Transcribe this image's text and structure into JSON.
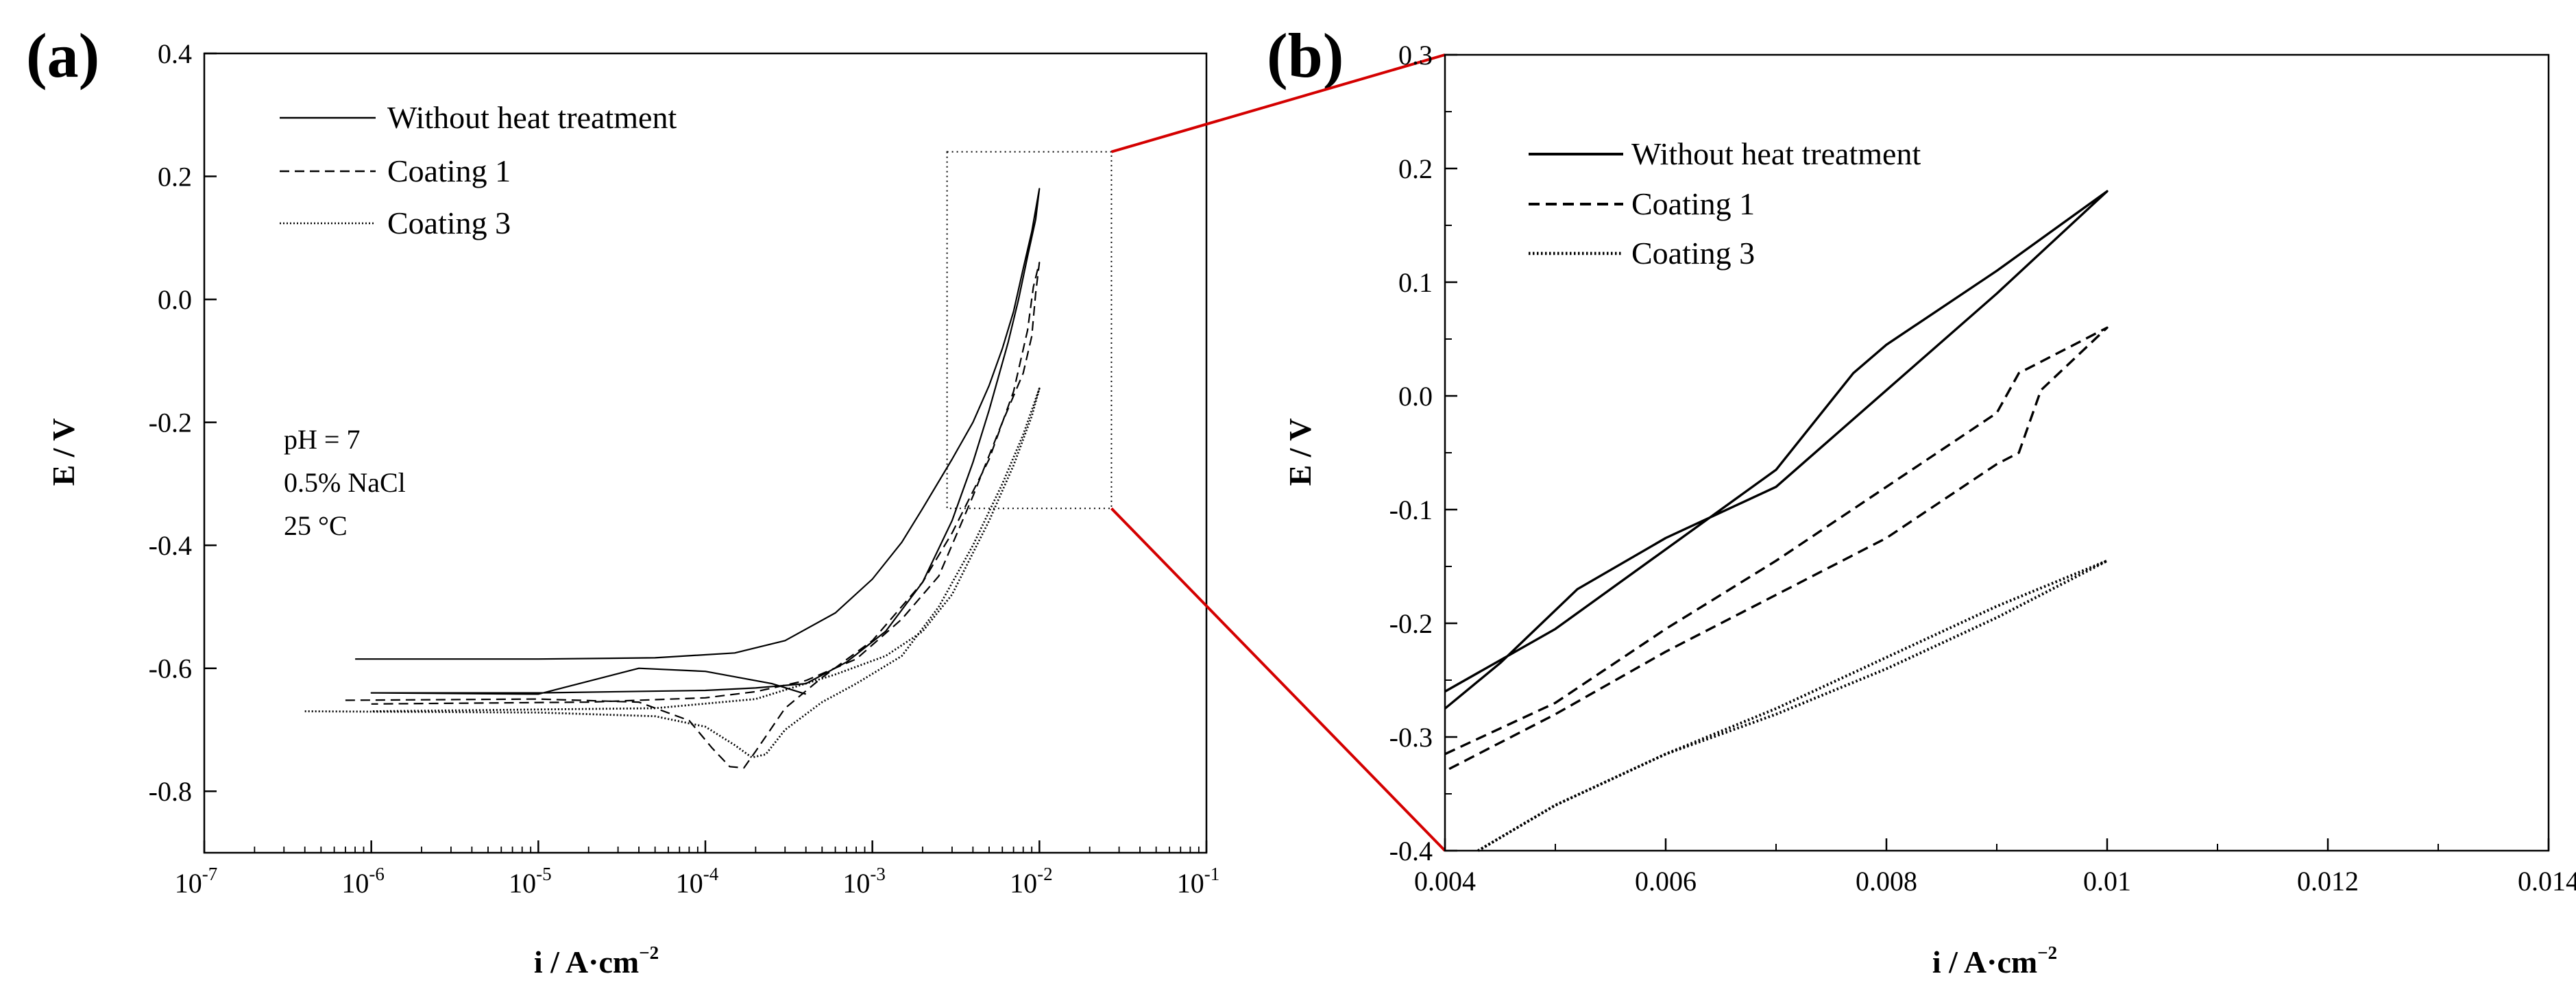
{
  "chart_data": [
    {
      "panel": "(a)",
      "type": "line",
      "xscale": "log",
      "xlim_exp": [
        -7,
        -1
      ],
      "xtick_labels": [
        "10-7",
        "10-6",
        "10-5",
        "10-4",
        "10-3",
        "10-2",
        "10-1"
      ],
      "ylim": [
        -0.9,
        0.4
      ],
      "yticks": [
        0.4,
        0.2,
        0.0,
        -0.2,
        -0.4,
        -0.6,
        -0.8
      ],
      "ytick_labels": [
        "0.4",
        "0.2",
        "0.0",
        "-0.2",
        "-0.4",
        "-0.6",
        "-0.8"
      ],
      "xlabel_base": "i / A·cm",
      "xlabel_sup": "−2",
      "ylabel": "E / V",
      "legend_placement": "top-left",
      "conditions": [
        "pH = 7",
        "0.5% NaCl",
        "25 °C"
      ],
      "zoom_box": {
        "x_range": [
          0.0028,
          0.027
        ],
        "y_range": [
          -0.34,
          0.24
        ]
      },
      "series": [
        {
          "name": "Without heat treatment",
          "style": "solid",
          "points": [
            [
              8e-07,
              -0.585
            ],
            [
              1e-05,
              -0.585
            ],
            [
              5e-05,
              -0.583
            ],
            [
              0.00015,
              -0.575
            ],
            [
              0.0003,
              -0.555
            ],
            [
              0.0006,
              -0.51
            ],
            [
              0.001,
              -0.455
            ],
            [
              0.0015,
              -0.395
            ],
            [
              0.002,
              -0.34
            ],
            [
              0.003,
              -0.26
            ],
            [
              0.004,
              -0.2
            ],
            [
              0.005,
              -0.14
            ],
            [
              0.006,
              -0.08
            ],
            [
              0.007,
              -0.02
            ],
            [
              0.008,
              0.05
            ],
            [
              0.009,
              0.11
            ],
            [
              0.01,
              0.18
            ],
            [
              0.0095,
              0.13
            ],
            [
              0.0085,
              0.07
            ],
            [
              0.0075,
              0.0
            ],
            [
              0.0065,
              -0.07
            ],
            [
              0.005,
              -0.18
            ],
            [
              0.004,
              -0.265
            ],
            [
              0.003,
              -0.36
            ],
            [
              0.002,
              -0.46
            ],
            [
              0.0012,
              -0.54
            ],
            [
              0.0007,
              -0.59
            ],
            [
              0.0004,
              -0.625
            ],
            [
              0.0002,
              -0.632
            ],
            [
              0.0001,
              -0.636
            ],
            [
              1e-05,
              -0.64
            ],
            [
              1e-06,
              -0.64
            ],
            [
              1.1e-06,
              -0.64
            ],
            [
              1e-05,
              -0.642
            ],
            [
              4e-05,
              -0.6
            ],
            [
              0.0001,
              -0.605
            ],
            [
              0.00025,
              -0.625
            ],
            [
              0.0004,
              -0.642
            ]
          ]
        },
        {
          "name": "Coating 1",
          "style": "dash",
          "points": [
            [
              7e-07,
              -0.652
            ],
            [
              1e-05,
              -0.65
            ],
            [
              4e-05,
              -0.655
            ],
            [
              8e-05,
              -0.685
            ],
            [
              0.00011,
              -0.73
            ],
            [
              0.00014,
              -0.76
            ],
            [
              0.00017,
              -0.762
            ],
            [
              0.0002,
              -0.735
            ],
            [
              0.0003,
              -0.665
            ],
            [
              0.0005,
              -0.615
            ],
            [
              0.001,
              -0.555
            ],
            [
              0.002,
              -0.46
            ],
            [
              0.003,
              -0.38
            ],
            [
              0.005,
              -0.26
            ],
            [
              0.007,
              -0.15
            ],
            [
              0.0085,
              -0.05
            ],
            [
              0.0092,
              0.02
            ],
            [
              0.01,
              0.06
            ],
            [
              0.0095,
              0.01
            ],
            [
              0.009,
              -0.06
            ],
            [
              0.008,
              -0.12
            ],
            [
              0.006,
              -0.2
            ],
            [
              0.004,
              -0.32
            ],
            [
              0.0025,
              -0.45
            ],
            [
              0.0015,
              -0.52
            ],
            [
              0.0008,
              -0.585
            ],
            [
              0.0004,
              -0.62
            ],
            [
              0.0002,
              -0.638
            ],
            [
              0.0001,
              -0.648
            ],
            [
              2e-05,
              -0.655
            ],
            [
              1e-06,
              -0.658
            ]
          ]
        },
        {
          "name": "Coating 3",
          "style": "dot",
          "points": [
            [
              4e-07,
              -0.67
            ],
            [
              1e-05,
              -0.672
            ],
            [
              5e-05,
              -0.678
            ],
            [
              0.0001,
              -0.695
            ],
            [
              0.00015,
              -0.725
            ],
            [
              0.00019,
              -0.745
            ],
            [
              0.00023,
              -0.74
            ],
            [
              0.0003,
              -0.7
            ],
            [
              0.0005,
              -0.655
            ],
            [
              0.0008,
              -0.625
            ],
            [
              0.0015,
              -0.58
            ],
            [
              0.0025,
              -0.5
            ],
            [
              0.004,
              -0.4
            ],
            [
              0.006,
              -0.3
            ],
            [
              0.008,
              -0.22
            ],
            [
              0.01,
              -0.145
            ],
            [
              0.009,
              -0.19
            ],
            [
              0.007,
              -0.27
            ],
            [
              0.005,
              -0.36
            ],
            [
              0.003,
              -0.48
            ],
            [
              0.002,
              -0.54
            ],
            [
              0.0012,
              -0.58
            ],
            [
              0.0006,
              -0.61
            ],
            [
              0.0002,
              -0.65
            ],
            [
              5e-05,
              -0.665
            ],
            [
              1e-06,
              -0.67
            ]
          ]
        }
      ]
    },
    {
      "panel": "(b)",
      "type": "line",
      "xscale": "linear",
      "xlim": [
        0.004,
        0.014
      ],
      "xticks": [
        0.004,
        0.006,
        0.008,
        0.01,
        0.012,
        0.014
      ],
      "xtick_labels": [
        "0.004",
        "0.006",
        "0.008",
        "0.01",
        "0.012",
        "0.014"
      ],
      "ylim": [
        -0.4,
        0.3
      ],
      "yticks": [
        0.3,
        0.2,
        0.1,
        0.0,
        -0.1,
        -0.2,
        -0.3,
        -0.4
      ],
      "ytick_labels": [
        "0.3",
        "0.2",
        "0.1",
        "0.0",
        "-0.1",
        "-0.2",
        "-0.3",
        "-0.4"
      ],
      "xlabel_base": "i / A·cm",
      "xlabel_sup": "−2",
      "ylabel": "E / V",
      "legend_placement": "top-left",
      "series": [
        {
          "name": "Without heat treatment",
          "style": "solid",
          "points": [
            [
              0.004,
              -0.26
            ],
            [
              0.005,
              -0.205
            ],
            [
              0.006,
              -0.135
            ],
            [
              0.007,
              -0.065
            ],
            [
              0.0077,
              0.02
            ],
            [
              0.008,
              0.045
            ],
            [
              0.009,
              0.11
            ],
            [
              0.01,
              0.18
            ],
            [
              0.009,
              0.09
            ],
            [
              0.008,
              0.005
            ],
            [
              0.007,
              -0.08
            ],
            [
              0.006,
              -0.125
            ],
            [
              0.0052,
              -0.17
            ],
            [
              0.0045,
              -0.235
            ],
            [
              0.004,
              -0.275
            ]
          ]
        },
        {
          "name": "Coating 1",
          "style": "dash",
          "points": [
            [
              0.004,
              -0.315
            ],
            [
              0.005,
              -0.27
            ],
            [
              0.006,
              -0.205
            ],
            [
              0.007,
              -0.145
            ],
            [
              0.008,
              -0.08
            ],
            [
              0.009,
              -0.015
            ],
            [
              0.0092,
              0.02
            ],
            [
              0.0096,
              0.04
            ],
            [
              0.01,
              0.06
            ],
            [
              0.0094,
              0.005
            ],
            [
              0.0092,
              -0.05
            ],
            [
              0.009,
              -0.06
            ],
            [
              0.008,
              -0.125
            ],
            [
              0.007,
              -0.175
            ],
            [
              0.006,
              -0.225
            ],
            [
              0.005,
              -0.28
            ],
            [
              0.004,
              -0.33
            ]
          ]
        },
        {
          "name": "Coating 3",
          "style": "dot",
          "points": [
            [
              0.0043,
              -0.4
            ],
            [
              0.005,
              -0.36
            ],
            [
              0.006,
              -0.315
            ],
            [
              0.007,
              -0.275
            ],
            [
              0.008,
              -0.23
            ],
            [
              0.009,
              -0.185
            ],
            [
              0.01,
              -0.145
            ],
            [
              0.009,
              -0.195
            ],
            [
              0.008,
              -0.24
            ],
            [
              0.007,
              -0.28
            ],
            [
              0.006,
              -0.315
            ],
            [
              0.005,
              -0.36
            ],
            [
              0.0043,
              -0.4
            ]
          ]
        }
      ]
    }
  ]
}
